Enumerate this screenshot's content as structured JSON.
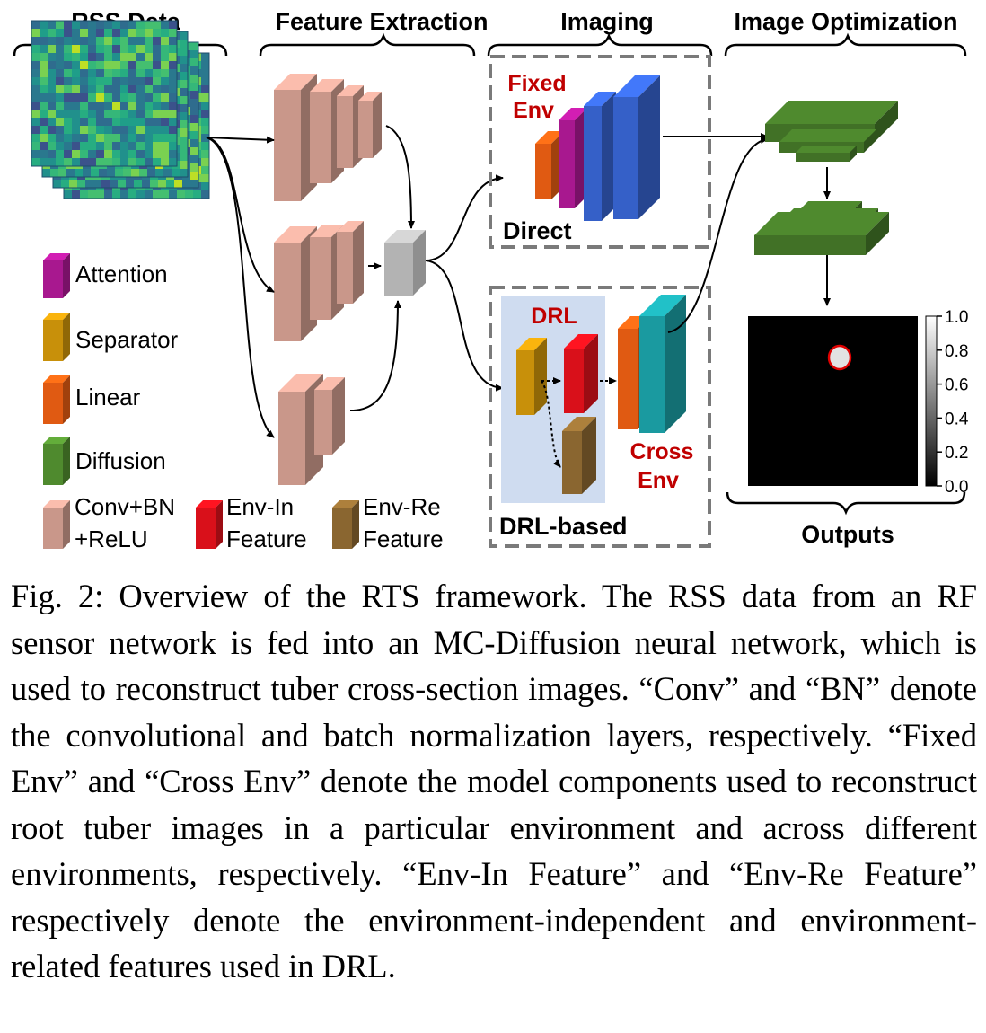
{
  "headers": {
    "rss_data": "RSS Data",
    "feature_extraction": "Feature Extraction",
    "imaging": "Imaging",
    "image_optimization": "Image Optimization"
  },
  "imaging": {
    "fixed_env_line1": "Fixed",
    "fixed_env_line2": "Env",
    "direct_label": "Direct",
    "drl_label": "DRL",
    "cross_env_line1": "Cross",
    "cross_env_line2": "Env",
    "drl_based_label": "DRL-based"
  },
  "legend": {
    "attention": "Attention",
    "separator": "Separator",
    "linear": "Linear",
    "diffusion": "Diffusion",
    "conv_line1": "Conv+BN",
    "conv_line2": "+ReLU",
    "env_in_line1": "Env-In",
    "env_in_line2": "Feature",
    "env_re_line1": "Env-Re",
    "env_re_line2": "Feature"
  },
  "outputs_label": "Outputs",
  "colorbar_ticks": [
    "1.0",
    "0.8",
    "0.6",
    "0.4",
    "0.2",
    "0.0"
  ],
  "colors": {
    "attention": "#a8188f",
    "separator": "#c8900a",
    "linear": "#e05a12",
    "diffusion": "#4f8a2e",
    "conv": "#c9978a",
    "env_in": "#d9101a",
    "env_re": "#8a6630",
    "direct_block": "#3560c8",
    "cross_block": "#1a9aa0",
    "drl_bg": "#cfdcf0",
    "red_text": "#c00000"
  },
  "caption": "Fig. 2: Overview of the RTS framework. The RSS data from an RF sensor network is fed into an MC-Diffusion neural network, which is used to reconstruct tuber cross-section images. “Conv” and “BN” denote the convolutional and batch normalization layers, respectively. “Fixed Env” and “Cross Env” denote the model components used to reconstruct root tuber images in a particular environment and across different environments, respectively. “Env-In Feature” and “Env-Re Feature” respectively denote the environment-independent and environment-related features used in DRL."
}
